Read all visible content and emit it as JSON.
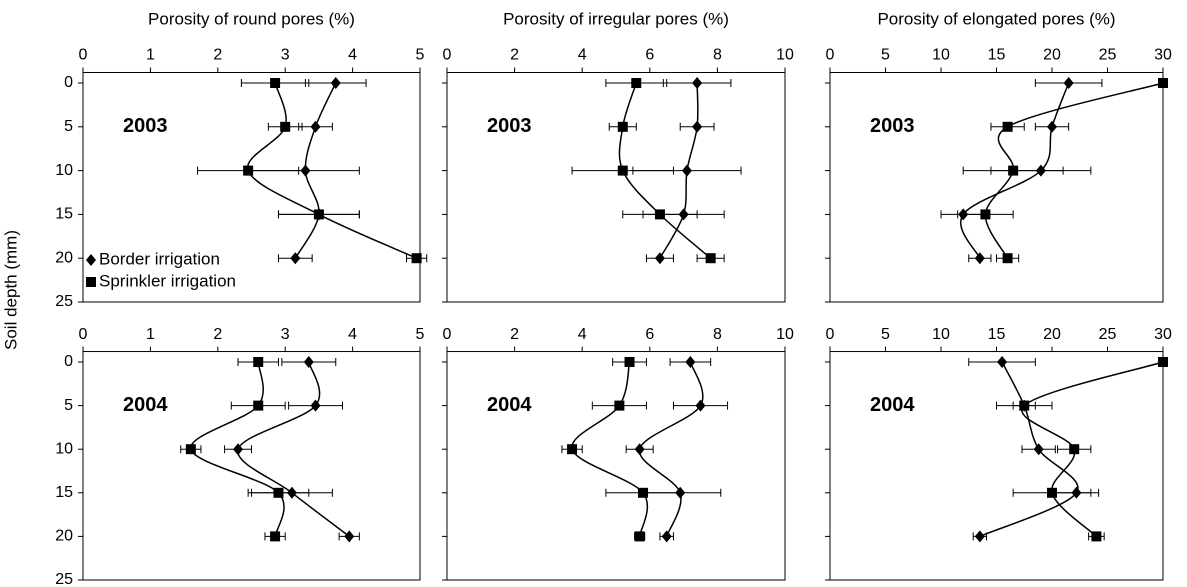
{
  "ylabel": "Soil depth (mm)",
  "chart_data": [
    {
      "type": "line",
      "xlabel": "Porosity of  round pores (%)",
      "annotation": "2003",
      "xlim": [
        0,
        5
      ],
      "xticks": [
        0,
        1,
        2,
        3,
        4,
        5
      ],
      "ylim": [
        25,
        -1.2
      ],
      "yticks": [
        0,
        5,
        10,
        15,
        20,
        25
      ],
      "legend": "lower left",
      "y": [
        0,
        5,
        10,
        15,
        20
      ],
      "series": [
        {
          "name": "Border irrigation",
          "marker": "diamond",
          "color": "#000000",
          "values": [
            3.75,
            3.45,
            3.3,
            3.5,
            3.15
          ],
          "errors": [
            0.45,
            0.25,
            0.8,
            0.6,
            0.25
          ]
        },
        {
          "name": "Sprinkler irrigation",
          "marker": "square",
          "color": "#000000",
          "values": [
            2.85,
            3.0,
            2.45,
            3.5,
            4.95
          ],
          "errors": [
            0.5,
            0.25,
            0.75,
            0.6,
            0.15
          ]
        }
      ]
    },
    {
      "type": "line",
      "xlabel": "Porosity of  irregular pores (%)",
      "annotation": "2003",
      "xlim": [
        0,
        10
      ],
      "xticks": [
        0,
        2,
        4,
        6,
        8,
        10
      ],
      "ylim": [
        25,
        -1.2
      ],
      "yticks": [
        0,
        5,
        10,
        15,
        20,
        25
      ],
      "y": [
        0,
        5,
        10,
        15,
        20
      ],
      "series": [
        {
          "marker": "diamond",
          "color": "#000000",
          "values": [
            7.4,
            7.4,
            7.1,
            7.0,
            6.3
          ],
          "errors": [
            1.0,
            0.5,
            1.6,
            1.2,
            0.4
          ]
        },
        {
          "marker": "square",
          "color": "#000000",
          "values": [
            5.6,
            5.2,
            5.2,
            6.3,
            7.8
          ],
          "errors": [
            0.9,
            0.4,
            1.5,
            1.1,
            0.4
          ]
        }
      ]
    },
    {
      "type": "line",
      "xlabel": "Porosity of elongated pores  (%)",
      "annotation": "2003",
      "xlim": [
        0,
        30
      ],
      "xticks": [
        0,
        5,
        10,
        15,
        20,
        25,
        30
      ],
      "ylim": [
        25,
        -1.2
      ],
      "yticks": [
        0,
        5,
        10,
        15,
        20,
        25
      ],
      "y": [
        0,
        5,
        10,
        15,
        20
      ],
      "series": [
        {
          "marker": "diamond",
          "color": "#000000",
          "values": [
            21.5,
            20,
            19,
            12,
            13.5
          ],
          "errors": [
            3,
            1.5,
            4.5,
            2,
            1
          ]
        },
        {
          "marker": "square",
          "color": "#000000",
          "values": [
            30,
            16,
            16.5,
            14,
            16
          ],
          "errors": [
            0,
            1.5,
            4.5,
            2.5,
            1
          ]
        }
      ]
    },
    {
      "type": "line",
      "annotation": "2004",
      "xlim": [
        0,
        5
      ],
      "xticks": [
        0,
        1,
        2,
        3,
        4,
        5
      ],
      "ylim": [
        25,
        -1.2
      ],
      "yticks": [
        0,
        5,
        10,
        15,
        20,
        25
      ],
      "y": [
        0,
        5,
        10,
        15,
        20
      ],
      "series": [
        {
          "marker": "diamond",
          "color": "#000000",
          "values": [
            3.35,
            3.45,
            2.3,
            3.1,
            3.95
          ],
          "errors": [
            0.4,
            0.4,
            0.2,
            0.6,
            0.15
          ]
        },
        {
          "marker": "square",
          "color": "#000000",
          "values": [
            2.6,
            2.6,
            1.6,
            2.9,
            2.85
          ],
          "errors": [
            0.3,
            0.4,
            0.15,
            0.45,
            0.15
          ]
        }
      ]
    },
    {
      "type": "line",
      "annotation": "2004",
      "xlim": [
        0,
        10
      ],
      "xticks": [
        0,
        2,
        4,
        6,
        8,
        10
      ],
      "ylim": [
        25,
        -1.2
      ],
      "yticks": [
        0,
        5,
        10,
        15,
        20,
        25
      ],
      "y": [
        0,
        5,
        10,
        15,
        20
      ],
      "series": [
        {
          "marker": "diamond",
          "color": "#000000",
          "values": [
            7.2,
            7.5,
            5.7,
            6.9,
            6.5
          ],
          "errors": [
            0.6,
            0.8,
            0.4,
            1.2,
            0.2
          ]
        },
        {
          "marker": "square",
          "color": "#000000",
          "values": [
            5.4,
            5.1,
            3.7,
            5.8,
            5.7
          ],
          "errors": [
            0.5,
            0.8,
            0.3,
            1.1,
            0.15
          ]
        }
      ]
    },
    {
      "type": "line",
      "annotation": "2004",
      "xlim": [
        0,
        30
      ],
      "xticks": [
        0,
        5,
        10,
        15,
        20,
        25,
        30
      ],
      "ylim": [
        25,
        -1.2
      ],
      "yticks": [
        0,
        5,
        10,
        15,
        20,
        25
      ],
      "y": [
        0,
        5,
        10,
        15,
        20
      ],
      "series": [
        {
          "marker": "diamond",
          "color": "#000000",
          "values": [
            15.5,
            17.5,
            18.8,
            22.2,
            13.5
          ],
          "errors": [
            3,
            1,
            1.5,
            2,
            0.6
          ]
        },
        {
          "marker": "square",
          "color": "#000000",
          "values": [
            30,
            17.5,
            22,
            20,
            24
          ],
          "errors": [
            0,
            2.5,
            1.5,
            3.5,
            0.7
          ]
        }
      ]
    }
  ]
}
